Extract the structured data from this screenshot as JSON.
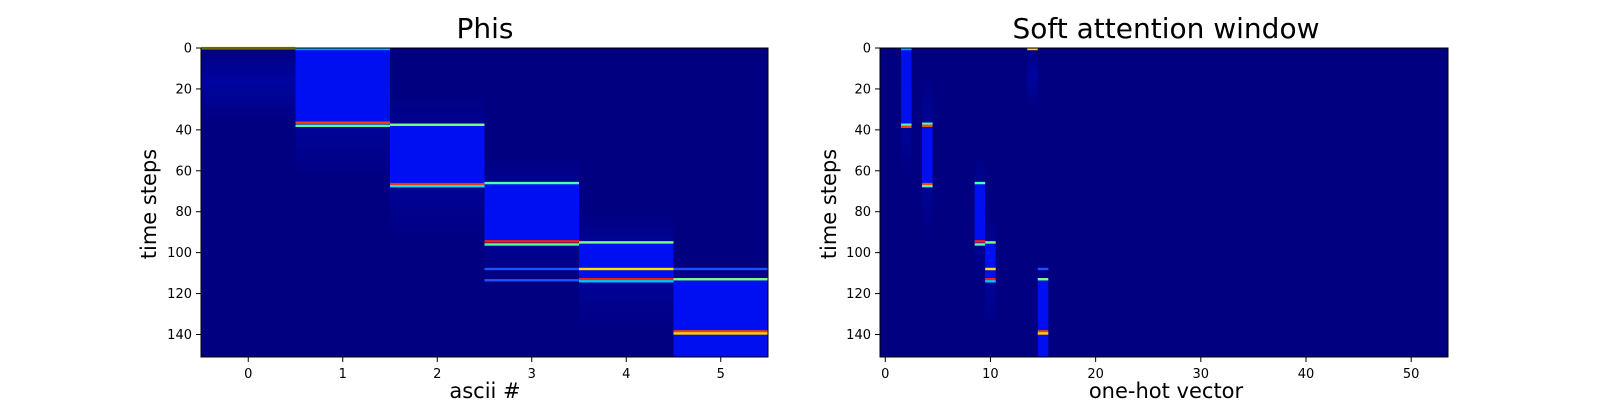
{
  "chart_data": [
    {
      "type": "heatmap",
      "title": "Phis",
      "xlabel": "ascii #",
      "ylabel": "time steps",
      "x_ticks": [
        "0",
        "1",
        "2",
        "3",
        "4",
        "5"
      ],
      "y_ticks": [
        "0",
        "20",
        "40",
        "60",
        "80",
        "100",
        "120",
        "140"
      ],
      "xlim": [
        -0.5,
        5.5
      ],
      "ylim": [
        151,
        0
      ],
      "colormap": "jet",
      "background_color": "#000080",
      "columns": [
        {
          "x": 0,
          "peak_start": 0,
          "peak_end": 1,
          "window_start": 0,
          "window_end": 37,
          "hot_lines": [
            {
              "t": 0,
              "color": "#d4d000"
            }
          ]
        },
        {
          "x": 1,
          "peak_start": 1,
          "peak_end": 37,
          "window_start": 1,
          "window_end": 66,
          "hot_lines": [
            {
              "t": 0.5,
              "color": "#00a0ff"
            },
            {
              "t": 36.5,
              "color": "#ff4000"
            },
            {
              "t": 38,
              "color": "#4fffb0"
            }
          ]
        },
        {
          "x": 2,
          "peak_start": 37,
          "peak_end": 66,
          "window_start": 20,
          "window_end": 96,
          "hot_lines": [
            {
              "t": 37.5,
              "color": "#7fff7f"
            },
            {
              "t": 66.5,
              "color": "#ff3000"
            },
            {
              "t": 67.5,
              "color": "#00e0ff"
            }
          ]
        },
        {
          "x": 3,
          "peak_start": 66,
          "peak_end": 95,
          "window_start": 50,
          "window_end": 115,
          "hot_lines": [
            {
              "t": 66,
              "color": "#4fffb0"
            },
            {
              "t": 94.5,
              "color": "#ff2000"
            },
            {
              "t": 96,
              "color": "#4fffb0"
            },
            {
              "t": 108,
              "color": "#2050ff"
            },
            {
              "t": 113.5,
              "color": "#2050ff"
            }
          ]
        },
        {
          "x": 4,
          "peak_start": 95,
          "peak_end": 113,
          "window_start": 78,
          "window_end": 140,
          "hot_lines": [
            {
              "t": 95,
              "color": "#7fff7f"
            },
            {
              "t": 108,
              "color": "#ffe000"
            },
            {
              "t": 113,
              "color": "#ff2000"
            },
            {
              "t": 114,
              "color": "#00c0ff"
            }
          ]
        },
        {
          "x": 5,
          "peak_start": 113,
          "peak_end": 151,
          "window_start": 106,
          "window_end": 151,
          "hot_lines": [
            {
              "t": 108,
              "color": "#2050ff"
            },
            {
              "t": 113,
              "color": "#7fff7f"
            },
            {
              "t": 138.5,
              "color": "#ff4000"
            },
            {
              "t": 139.5,
              "color": "#ffd000"
            }
          ]
        }
      ]
    },
    {
      "type": "heatmap",
      "title": "Soft attention window",
      "xlabel": "one-hot vector",
      "ylabel": "time steps",
      "x_ticks": [
        "0",
        "10",
        "20",
        "30",
        "40",
        "50"
      ],
      "y_ticks": [
        "0",
        "20",
        "40",
        "60",
        "80",
        "100",
        "120",
        "140"
      ],
      "xlim": [
        -0.5,
        53.5
      ],
      "ylim": [
        151,
        0
      ],
      "colormap": "jet",
      "background_color": "#000080",
      "columns": [
        {
          "x": 2,
          "window_start": 0,
          "window_end": 65,
          "peak_start": 0,
          "peak_end": 37,
          "hot_lines": [
            {
              "t": 0.5,
              "color": "#00a0ff"
            },
            {
              "t": 37.5,
              "color": "#4fffb0"
            },
            {
              "t": 38.5,
              "color": "#ff4000"
            }
          ]
        },
        {
          "x": 4,
          "window_start": 10,
          "window_end": 96,
          "peak_start": 37,
          "peak_end": 66,
          "hot_lines": [
            {
              "t": 37,
              "color": "#4fffb0"
            },
            {
              "t": 38,
              "color": "#ff5000"
            },
            {
              "t": 66.5,
              "color": "#ff4000"
            },
            {
              "t": 67.5,
              "color": "#4fffb0"
            }
          ]
        },
        {
          "x": 9,
          "window_start": 50,
          "window_end": 115,
          "peak_start": 66,
          "peak_end": 96,
          "hot_lines": [
            {
              "t": 66,
              "color": "#4fffb0"
            },
            {
              "t": 94.5,
              "color": "#ff2000"
            },
            {
              "t": 96,
              "color": "#4fffb0"
            }
          ]
        },
        {
          "x": 10,
          "window_start": 80,
          "window_end": 140,
          "peak_start": 95,
          "peak_end": 114,
          "hot_lines": [
            {
              "t": 95,
              "color": "#7fff7f"
            },
            {
              "t": 108,
              "color": "#ffe000"
            },
            {
              "t": 113,
              "color": "#ff2000"
            },
            {
              "t": 114,
              "color": "#00c0ff"
            }
          ]
        },
        {
          "x": 14,
          "window_start": 0,
          "window_end": 30,
          "peak_start": 0,
          "peak_end": 1,
          "hot_lines": [
            {
              "t": 0.5,
              "color": "#ffd000"
            }
          ]
        },
        {
          "x": 15,
          "window_start": 105,
          "window_end": 151,
          "peak_start": 113,
          "peak_end": 151,
          "hot_lines": [
            {
              "t": 108,
              "color": "#2050ff"
            },
            {
              "t": 113,
              "color": "#7fff7f"
            },
            {
              "t": 138.5,
              "color": "#ff4000"
            },
            {
              "t": 139.5,
              "color": "#ffd000"
            }
          ]
        }
      ]
    }
  ]
}
